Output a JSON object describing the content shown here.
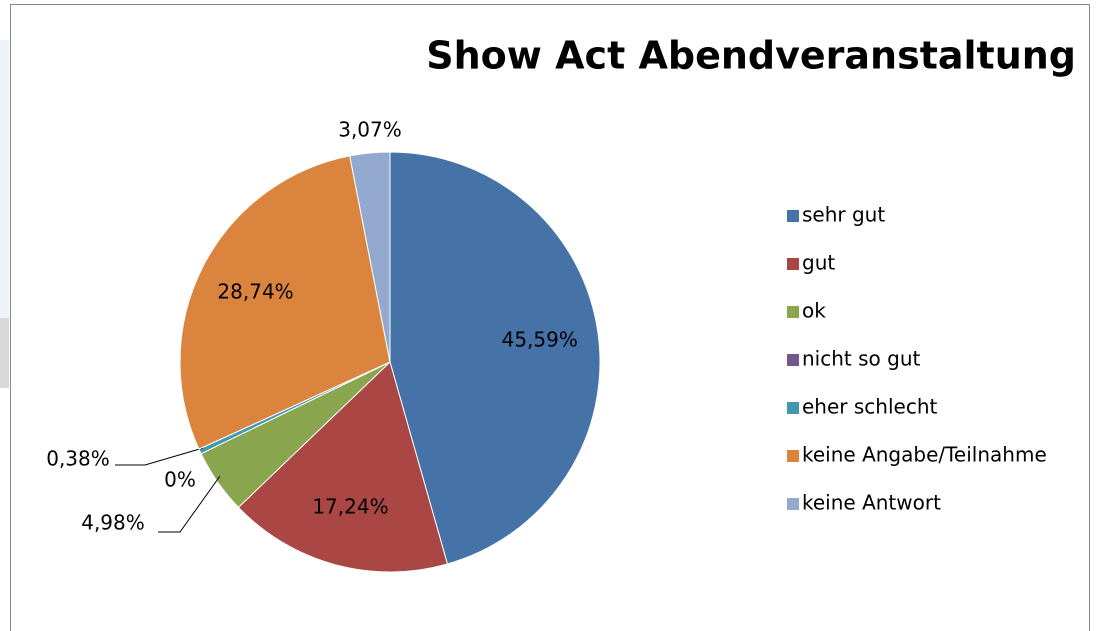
{
  "chart_data": {
    "type": "pie",
    "title": "Show Act Abendveranstaltung",
    "categories": [
      "sehr gut",
      "gut",
      "ok",
      "nicht so gut",
      "eher schlecht",
      "keine Angabe/Teilnahme",
      "keine Antwort"
    ],
    "values": [
      45.59,
      17.24,
      4.98,
      0,
      0.38,
      28.74,
      3.07
    ],
    "value_labels": [
      "45,59%",
      "17,24%",
      "4,98%",
      "0%",
      "0,38%",
      "28,74%",
      "3,07%"
    ],
    "colors": [
      "#4572a7",
      "#aa4643",
      "#89a54e",
      "#71588f",
      "#4198af",
      "#db843d",
      "#93a9cf"
    ],
    "legend": "right"
  }
}
